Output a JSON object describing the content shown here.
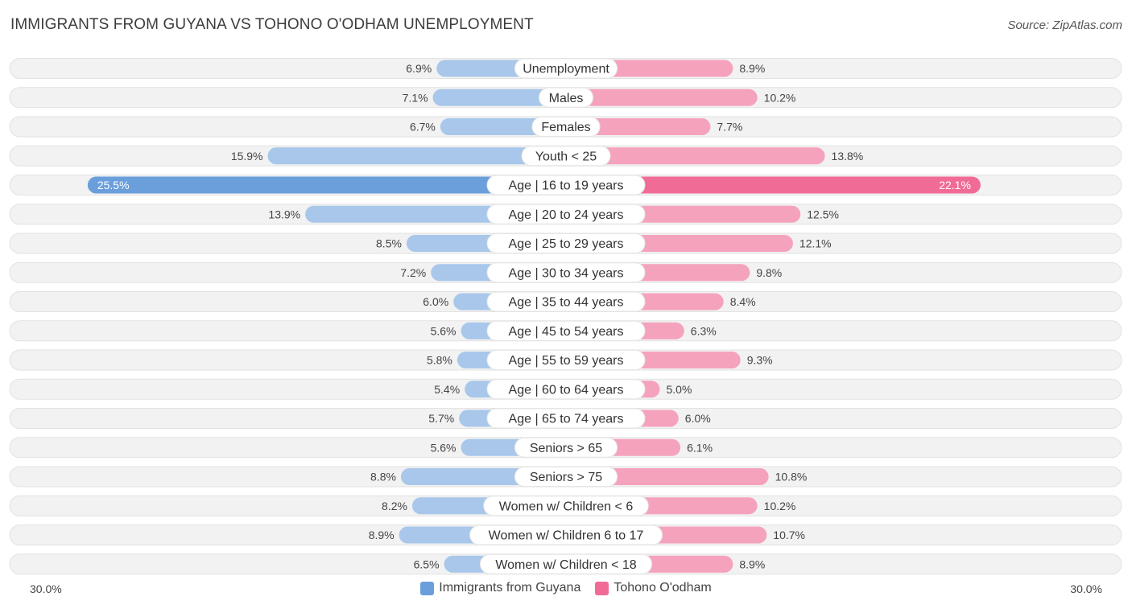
{
  "header": {
    "title": "IMMIGRANTS FROM GUYANA VS TOHONO O'ODHAM UNEMPLOYMENT",
    "source": "Source: ZipAtlas.com"
  },
  "colors": {
    "left_light": "#a8c7ea",
    "left_dark": "#6a9fdc",
    "right_light": "#f5a3bd",
    "right_dark": "#f06c96",
    "track": "#f0f0f0"
  },
  "chart_data": {
    "type": "bar",
    "orientation": "horizontal-diverging",
    "title": "IMMIGRANTS FROM GUYANA VS TOHONO O'ODHAM UNEMPLOYMENT",
    "xlim": [
      -30,
      30
    ],
    "axis_min_label": "30.0%",
    "axis_max_label": "30.0%",
    "legend_placement": "bottom-center",
    "categories": [
      "Unemployment",
      "Males",
      "Females",
      "Youth < 25",
      "Age | 16 to 19 years",
      "Age | 20 to 24 years",
      "Age | 25 to 29 years",
      "Age | 30 to 34 years",
      "Age | 35 to 44 years",
      "Age | 45 to 54 years",
      "Age | 55 to 59 years",
      "Age | 60 to 64 years",
      "Age | 65 to 74 years",
      "Seniors > 65",
      "Seniors > 75",
      "Women w/ Children < 6",
      "Women w/ Children 6 to 17",
      "Women w/ Children < 18"
    ],
    "series": [
      {
        "name": "Immigrants from Guyana",
        "values": [
          6.9,
          7.1,
          6.7,
          15.9,
          25.5,
          13.9,
          8.5,
          7.2,
          6.0,
          5.6,
          5.8,
          5.4,
          5.7,
          5.6,
          8.8,
          8.2,
          8.9,
          6.5
        ],
        "labels": [
          "6.9%",
          "7.1%",
          "6.7%",
          "15.9%",
          "25.5%",
          "13.9%",
          "8.5%",
          "7.2%",
          "6.0%",
          "5.6%",
          "5.8%",
          "5.4%",
          "5.7%",
          "5.6%",
          "8.8%",
          "8.2%",
          "8.9%",
          "6.5%"
        ]
      },
      {
        "name": "Tohono O'odham",
        "values": [
          8.9,
          10.2,
          7.7,
          13.8,
          22.1,
          12.5,
          12.1,
          9.8,
          8.4,
          6.3,
          9.3,
          5.0,
          6.0,
          6.1,
          10.8,
          10.2,
          10.7,
          8.9
        ],
        "labels": [
          "8.9%",
          "10.2%",
          "7.7%",
          "13.8%",
          "22.1%",
          "12.5%",
          "12.1%",
          "9.8%",
          "8.4%",
          "6.3%",
          "9.3%",
          "5.0%",
          "6.0%",
          "6.1%",
          "10.8%",
          "10.2%",
          "10.7%",
          "8.9%"
        ]
      }
    ]
  },
  "legend": {
    "left_label": "Immigrants from Guyana",
    "right_label": "Tohono O'odham"
  }
}
